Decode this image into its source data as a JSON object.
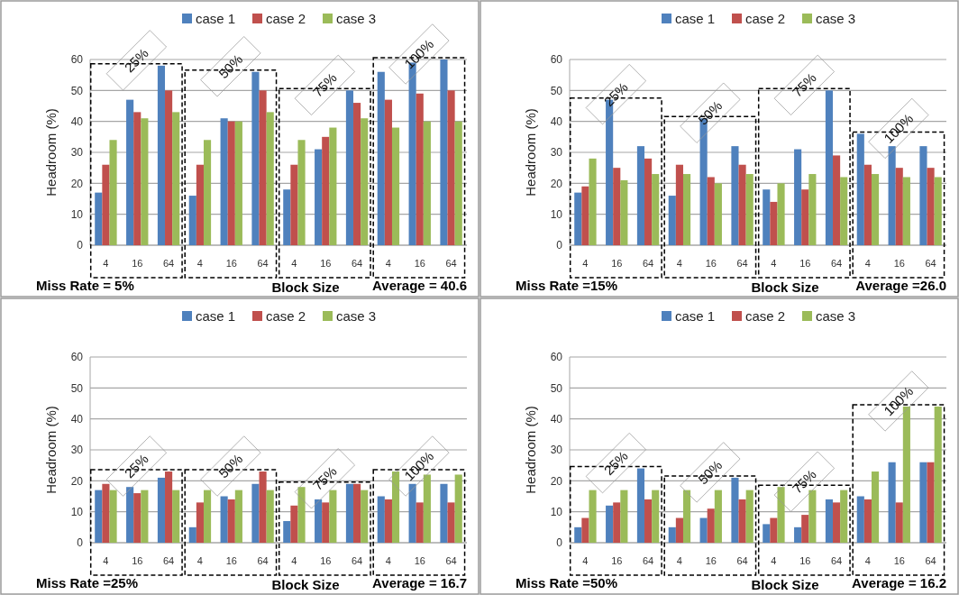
{
  "chart_data": [
    {
      "type": "bar",
      "xlabel": "Block Size",
      "ylabel": "Headroom (%)",
      "categories": [
        "4",
        "16",
        "64",
        "4",
        "16",
        "64",
        "4",
        "16",
        "64",
        "4",
        "16",
        "64"
      ],
      "ylim": [
        0,
        60
      ],
      "yticks": [
        0,
        10,
        20,
        30,
        40,
        50,
        60
      ],
      "grid": "y",
      "legend": "top",
      "annotations": [
        "25%",
        "50%",
        "75%",
        "100%",
        "Miss Rate = 5%",
        "Average = 40.6"
      ],
      "series": [
        {
          "name": "case 1",
          "color": "#4f81bd",
          "values": [
            17,
            47,
            58,
            16,
            41,
            56,
            18,
            31,
            50,
            56,
            59,
            60
          ]
        },
        {
          "name": "case 2",
          "color": "#c0504d",
          "values": [
            26,
            43,
            50,
            26,
            40,
            50,
            26,
            35,
            46,
            47,
            49,
            50
          ]
        },
        {
          "name": "case 3",
          "color": "#9bbb59",
          "values": [
            34,
            41,
            43,
            34,
            40,
            43,
            34,
            38,
            41,
            38,
            40,
            40
          ]
        }
      ]
    },
    {
      "type": "bar",
      "xlabel": "Block Size",
      "ylabel": "Headroom (%)",
      "categories": [
        "4",
        "16",
        "64",
        "4",
        "16",
        "64",
        "4",
        "16",
        "64",
        "4",
        "16",
        "64"
      ],
      "ylim": [
        0,
        60
      ],
      "yticks": [
        0,
        10,
        20,
        30,
        40,
        50,
        60
      ],
      "grid": "y",
      "legend": "top",
      "annotations": [
        "25%",
        "50%",
        "75%",
        "100%",
        "Miss Rate =15%",
        "Average =26.0"
      ],
      "series": [
        {
          "name": "case 1",
          "color": "#4f81bd",
          "values": [
            17,
            47,
            32,
            16,
            41,
            32,
            18,
            31,
            50,
            36,
            32,
            32
          ]
        },
        {
          "name": "case 2",
          "color": "#c0504d",
          "values": [
            19,
            25,
            28,
            26,
            22,
            26,
            14,
            18,
            29,
            26,
            25,
            25
          ]
        },
        {
          "name": "case 3",
          "color": "#9bbb59",
          "values": [
            28,
            21,
            23,
            23,
            20,
            23,
            20,
            23,
            22,
            23,
            22,
            22
          ]
        }
      ]
    },
    {
      "type": "bar",
      "xlabel": "Block Size",
      "ylabel": "Headroom (%)",
      "categories": [
        "4",
        "16",
        "64",
        "4",
        "16",
        "64",
        "4",
        "16",
        "64",
        "4",
        "16",
        "64"
      ],
      "ylim": [
        0,
        60
      ],
      "yticks": [
        0,
        10,
        20,
        30,
        40,
        50,
        60
      ],
      "grid": "y",
      "legend": "top",
      "annotations": [
        "25%",
        "50%",
        "75%",
        "100%",
        "Miss Rate =25%",
        "Average = 16.7"
      ],
      "series": [
        {
          "name": "case 1",
          "color": "#4f81bd",
          "values": [
            17,
            18,
            21,
            5,
            15,
            19,
            7,
            14,
            19,
            15,
            19,
            19
          ]
        },
        {
          "name": "case 2",
          "color": "#c0504d",
          "values": [
            19,
            16,
            23,
            13,
            14,
            23,
            12,
            13,
            19,
            14,
            13,
            13
          ]
        },
        {
          "name": "case 3",
          "color": "#9bbb59",
          "values": [
            17,
            17,
            17,
            17,
            17,
            17,
            18,
            17,
            17,
            23,
            22,
            22
          ]
        }
      ]
    },
    {
      "type": "bar",
      "xlabel": "Block Size",
      "ylabel": "Headroom (%)",
      "categories": [
        "4",
        "16",
        "64",
        "4",
        "16",
        "64",
        "4",
        "16",
        "64",
        "4",
        "16",
        "64"
      ],
      "ylim": [
        0,
        60
      ],
      "yticks": [
        0,
        10,
        20,
        30,
        40,
        50,
        60
      ],
      "grid": "y",
      "legend": "top",
      "annotations": [
        "25%",
        "50%",
        "75%",
        "100%",
        "Miss Rate =50%",
        "Average = 16.2"
      ],
      "series": [
        {
          "name": "case 1",
          "color": "#4f81bd",
          "values": [
            5,
            12,
            24,
            5,
            8,
            21,
            6,
            5,
            14,
            15,
            26,
            26
          ]
        },
        {
          "name": "case 2",
          "color": "#c0504d",
          "values": [
            8,
            13,
            14,
            8,
            11,
            14,
            8,
            9,
            13,
            14,
            13,
            26
          ]
        },
        {
          "name": "case 3",
          "color": "#9bbb59",
          "values": [
            17,
            17,
            17,
            17,
            17,
            17,
            18,
            17,
            17,
            23,
            44,
            44
          ]
        }
      ]
    }
  ]
}
